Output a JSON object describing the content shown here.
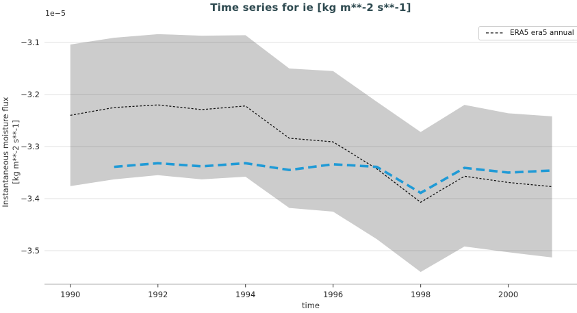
{
  "title": "Time series for ie [kg m**-2 s**-1]",
  "colors": {
    "title": "#2e4a50",
    "band": "rgba(0,0,0,0.20)",
    "grid": "#e0e0e0",
    "spine": "#c8c8c8",
    "tick": "#555555",
    "tick_text": "#262626",
    "era5_line": "#111111",
    "blue_line": "#1f9ad6"
  },
  "axes": {
    "offset_label": "1e−5",
    "xlabel": "time",
    "ylabel_line1": "Instantaneous moisture flux",
    "ylabel_line2": "[kg m**-2 s**-1]",
    "x_ticks": [
      1990,
      1992,
      1994,
      1996,
      1998,
      2000
    ],
    "x_tick_labels": [
      "1990",
      "1992",
      "1994",
      "1996",
      "1998",
      "2000"
    ],
    "y_ticks": [
      -3.1,
      -3.2,
      -3.3,
      -3.4,
      -3.5
    ],
    "y_tick_labels": [
      "−3.1",
      "−3.2",
      "−3.3",
      "−3.4",
      "−3.5"
    ],
    "xlim": [
      1989.41,
      2001.57
    ],
    "ylim": [
      -3.5645,
      -3.0645
    ],
    "grid": true
  },
  "legend": {
    "position": "upper right",
    "entries": [
      {
        "label": "ERA5 era5 annual",
        "style": "black-dashed"
      }
    ]
  },
  "chart_data": {
    "type": "line",
    "title": "Time series for ie [kg m**-2 s**-1]",
    "xlabel": "time",
    "ylabel": "Instantaneous moisture flux [kg m**-2 s**-1]",
    "units_scale": "1e-5",
    "x": [
      1990,
      1991,
      1992,
      1993,
      1994,
      1995,
      1996,
      1997,
      1998,
      1999,
      2000,
      2001
    ],
    "series": [
      {
        "name": "ERA5 era5 annual",
        "values": [
          -3.24,
          -3.225,
          -3.22,
          -3.229,
          -3.222,
          -3.284,
          -3.291,
          -3.343,
          -3.407,
          -3.357,
          -3.369,
          -3.377
        ]
      },
      {
        "name": "blue-dashed-series",
        "values": [
          null,
          -3.339,
          -3.332,
          -3.338,
          -3.332,
          -3.345,
          -3.334,
          -3.339,
          -3.389,
          -3.341,
          -3.35,
          -3.346
        ]
      }
    ],
    "band": {
      "upper": [
        -3.104,
        -3.091,
        -3.084,
        -3.087,
        -3.086,
        -3.15,
        -3.155,
        -3.214,
        -3.272,
        -3.22,
        -3.236,
        -3.242
      ],
      "lower": [
        -3.376,
        -3.363,
        -3.355,
        -3.363,
        -3.358,
        -3.418,
        -3.425,
        -3.478,
        -3.541,
        -3.492,
        -3.503,
        -3.513
      ]
    }
  }
}
